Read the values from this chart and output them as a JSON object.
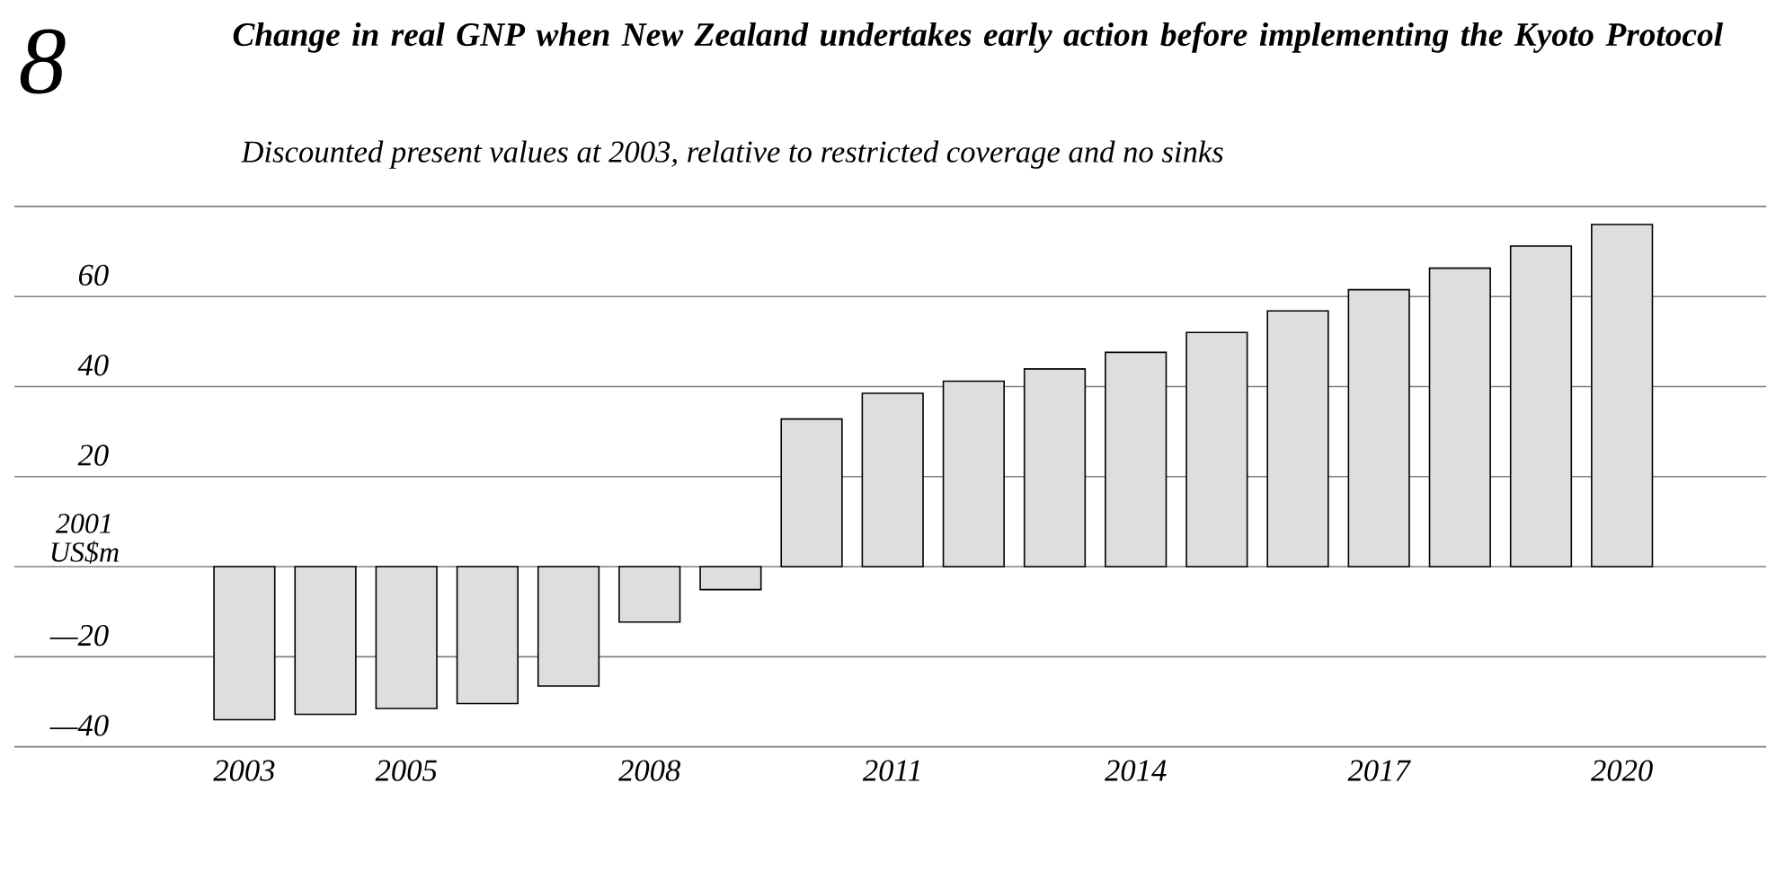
{
  "chart_data": {
    "type": "bar",
    "title": "Change in real GNP when New Zealand undertakes early action before implementing the Kyoto Protocol",
    "subtitle": "Discounted present values at 2003, relative to restricted coverage and no sinks",
    "annotations": [
      "8"
    ],
    "ylabel": "2001 US$m",
    "categories": [
      "2003",
      null,
      "2005",
      null,
      null,
      "2008",
      null,
      null,
      "2011",
      null,
      null,
      "2014",
      null,
      null,
      "2017",
      null,
      null,
      "2020"
    ],
    "values": [
      -34,
      -32.8,
      -31.5,
      -30.4,
      -26.5,
      -12.3,
      -5.1,
      32.8,
      38.5,
      41.2,
      43.9,
      47.6,
      52,
      56.8,
      61.5,
      66.3,
      71.2,
      76
    ],
    "color": "#dedede",
    "ylim": [
      -40,
      80
    ],
    "yticks": [
      {
        "value": -40,
        "label": "—40"
      },
      {
        "value": -20,
        "label": "—20"
      },
      {
        "value": 0,
        "label": null
      },
      20,
      40,
      60,
      {
        "value": 80,
        "label": null
      }
    ],
    "grid": "y"
  }
}
